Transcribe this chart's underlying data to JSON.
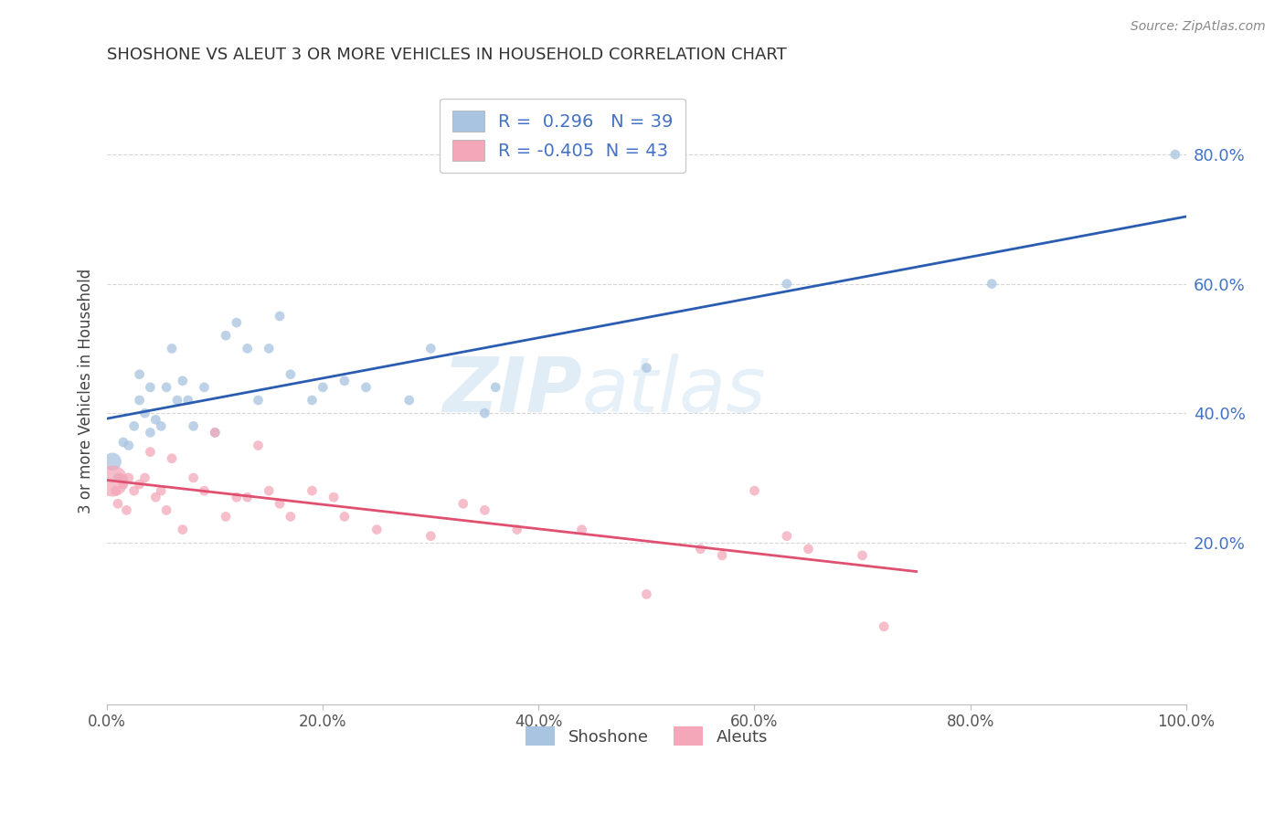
{
  "title": "SHOSHONE VS ALEUT 3 OR MORE VEHICLES IN HOUSEHOLD CORRELATION CHART",
  "source_text": "Source: ZipAtlas.com",
  "ylabel": "3 or more Vehicles in Household",
  "xlim": [
    0.0,
    1.0
  ],
  "ylim": [
    -0.05,
    0.92
  ],
  "yticks": [
    0.2,
    0.4,
    0.6,
    0.8
  ],
  "ytick_labels": [
    "20.0%",
    "40.0%",
    "60.0%",
    "80.0%"
  ],
  "xticks": [
    0.0,
    0.2,
    0.4,
    0.6,
    0.8,
    1.0
  ],
  "xtick_labels": [
    "0.0%",
    "20.0%",
    "40.0%",
    "60.0%",
    "80.0%",
    "100.0%"
  ],
  "shoshone_R": 0.296,
  "shoshone_N": 39,
  "aleut_R": -0.405,
  "aleut_N": 43,
  "shoshone_color": "#a8c4e0",
  "aleut_color": "#f4a7b9",
  "shoshone_line_color": "#2a5db0",
  "aleut_line_color": "#e05070",
  "legend_label_shoshone": "Shoshone",
  "legend_label_aleut": "Aleuts",
  "watermark_zip": "ZIP",
  "watermark_atlas": "atlas",
  "shoshone_x": [
    0.005,
    0.01,
    0.015,
    0.02,
    0.025,
    0.03,
    0.03,
    0.035,
    0.04,
    0.04,
    0.045,
    0.05,
    0.055,
    0.06,
    0.065,
    0.07,
    0.075,
    0.08,
    0.09,
    0.1,
    0.11,
    0.12,
    0.13,
    0.14,
    0.15,
    0.16,
    0.17,
    0.19,
    0.2,
    0.22,
    0.24,
    0.28,
    0.3,
    0.35,
    0.36,
    0.5,
    0.63,
    0.82,
    0.99
  ],
  "shoshone_y": [
    0.325,
    0.3,
    0.355,
    0.35,
    0.38,
    0.42,
    0.46,
    0.4,
    0.37,
    0.44,
    0.39,
    0.38,
    0.44,
    0.5,
    0.42,
    0.45,
    0.42,
    0.38,
    0.44,
    0.37,
    0.52,
    0.54,
    0.5,
    0.42,
    0.5,
    0.55,
    0.46,
    0.42,
    0.44,
    0.45,
    0.44,
    0.42,
    0.5,
    0.4,
    0.44,
    0.47,
    0.6,
    0.6,
    0.8
  ],
  "shoshone_sizes": [
    200,
    60,
    60,
    60,
    60,
    60,
    60,
    60,
    60,
    60,
    60,
    60,
    60,
    60,
    60,
    60,
    60,
    60,
    60,
    60,
    60,
    60,
    60,
    60,
    60,
    60,
    60,
    60,
    60,
    60,
    60,
    60,
    60,
    60,
    60,
    60,
    60,
    60,
    60
  ],
  "aleut_x": [
    0.005,
    0.008,
    0.01,
    0.012,
    0.015,
    0.018,
    0.02,
    0.025,
    0.03,
    0.035,
    0.04,
    0.045,
    0.05,
    0.055,
    0.06,
    0.07,
    0.08,
    0.09,
    0.1,
    0.11,
    0.12,
    0.13,
    0.14,
    0.15,
    0.16,
    0.17,
    0.19,
    0.21,
    0.22,
    0.25,
    0.3,
    0.33,
    0.35,
    0.38,
    0.44,
    0.5,
    0.55,
    0.57,
    0.6,
    0.63,
    0.65,
    0.7,
    0.72
  ],
  "aleut_y": [
    0.295,
    0.28,
    0.26,
    0.3,
    0.29,
    0.25,
    0.3,
    0.28,
    0.29,
    0.3,
    0.34,
    0.27,
    0.28,
    0.25,
    0.33,
    0.22,
    0.3,
    0.28,
    0.37,
    0.24,
    0.27,
    0.27,
    0.35,
    0.28,
    0.26,
    0.24,
    0.28,
    0.27,
    0.24,
    0.22,
    0.21,
    0.26,
    0.25,
    0.22,
    0.22,
    0.12,
    0.19,
    0.18,
    0.28,
    0.21,
    0.19,
    0.18,
    0.07
  ],
  "aleut_sizes": [
    600,
    60,
    60,
    60,
    60,
    60,
    60,
    60,
    60,
    60,
    60,
    60,
    60,
    60,
    60,
    60,
    60,
    60,
    60,
    60,
    60,
    60,
    60,
    60,
    60,
    60,
    60,
    60,
    60,
    60,
    60,
    60,
    60,
    60,
    60,
    60,
    60,
    60,
    60,
    60,
    60,
    60,
    60
  ]
}
